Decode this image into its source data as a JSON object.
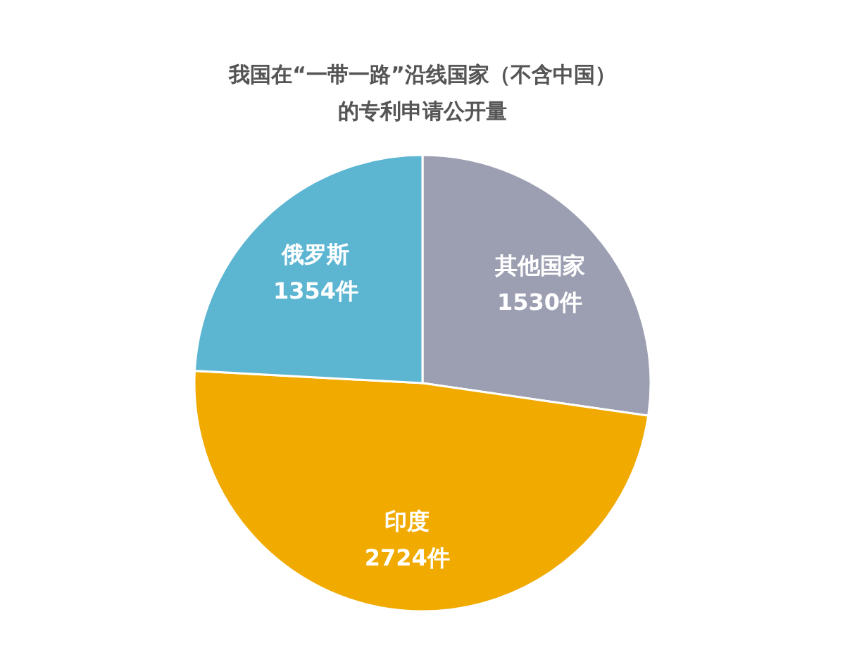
{
  "chart_data": {
    "type": "pie",
    "title": "我国在“一带一路”沿线国家（不含中国）的专利申请公开量",
    "categories": [
      "其他国家",
      "印度",
      "俄罗斯"
    ],
    "values": [
      1530,
      2724,
      1354
    ],
    "colors": [
      "#9c9fb2",
      "#f0aa00",
      "#5cb5d1"
    ],
    "value_labels": [
      "1530件",
      "2724件",
      "1354件"
    ]
  }
}
